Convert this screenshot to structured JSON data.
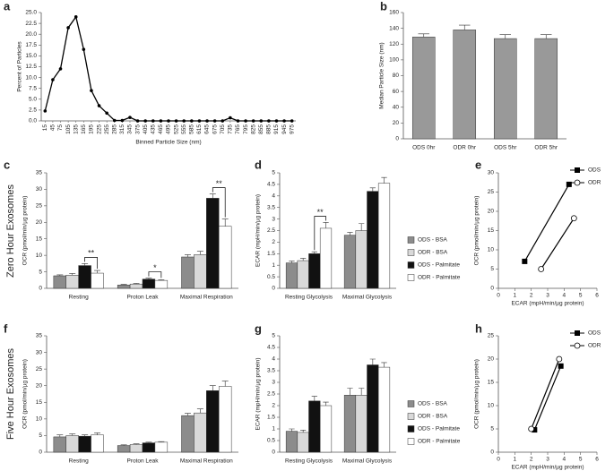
{
  "row_labels": [
    "Zero Hour Exosomes",
    "Five Hour Exosomes"
  ],
  "chart_data": [
    {
      "panel": "a",
      "type": "line",
      "categories": [
        "15",
        "45",
        "75",
        "105",
        "135",
        "165",
        "195",
        "225",
        "255",
        "285",
        "315",
        "345",
        "375",
        "405",
        "435",
        "465",
        "495",
        "525",
        "555",
        "585",
        "615",
        "645",
        "675",
        "705",
        "735",
        "765",
        "795",
        "825",
        "855",
        "885",
        "915",
        "945",
        "975"
      ],
      "series": [
        {
          "color": "#000000",
          "values": [
            2.3,
            9.5,
            12,
            21.5,
            24,
            16.5,
            7,
            3.5,
            1.8,
            0.1,
            0.1,
            0.8,
            0,
            0,
            0,
            0,
            0,
            0,
            0,
            0,
            0,
            0,
            0,
            0,
            0.7,
            0,
            0,
            0,
            0,
            0,
            0,
            0,
            0
          ]
        }
      ],
      "ylim": [
        0,
        25
      ],
      "yticks": [
        {
          "value": 0,
          "label": "0.0"
        },
        {
          "value": 2.5,
          "label": "2.5"
        },
        {
          "value": 5,
          "label": "5.0"
        },
        {
          "value": 7.5,
          "label": "7.5"
        },
        {
          "value": 10,
          "label": "10.0"
        },
        {
          "value": 12.5,
          "label": "12.5"
        },
        {
          "value": 15,
          "label": "15.0"
        },
        {
          "value": 17.5,
          "label": "17.5"
        },
        {
          "value": 20,
          "label": "20.0"
        },
        {
          "value": 22.5,
          "label": "22.5"
        },
        {
          "value": 25,
          "label": "25.0"
        }
      ],
      "xlabel": "Binned Particle Size (nm)",
      "ylabel": "Percent of Particles"
    },
    {
      "panel": "b",
      "type": "bar",
      "categories": [
        "ODS 0hr",
        "ODR 0hr",
        "ODS 5hr",
        "ODR 5hr"
      ],
      "series": [
        {
          "color": "#999999",
          "values": [
            129,
            138,
            127,
            127
          ],
          "errors": [
            4,
            6,
            5,
            5
          ]
        }
      ],
      "ylim": [
        0,
        160
      ],
      "yticks": [
        0,
        20,
        40,
        60,
        80,
        100,
        120,
        140,
        160
      ],
      "ylabel": "Median Particle Size (nm)"
    },
    {
      "panel": "c",
      "type": "bar",
      "categories": [
        "Resting",
        "Proton Leak",
        "Maximal Respiration"
      ],
      "series": [
        {
          "color": "#8c8c8c",
          "values": [
            3.8,
            1.0,
            9.5
          ],
          "errors": [
            0.3,
            0.2,
            0.7
          ]
        },
        {
          "color": "#d9d9d9",
          "values": [
            4.0,
            1.3,
            10.2
          ],
          "errors": [
            0.5,
            0.2,
            1.0
          ]
        },
        {
          "color": "#111111",
          "values": [
            6.9,
            2.8,
            27.3
          ],
          "errors": [
            0.6,
            0.3,
            1.3
          ]
        },
        {
          "color": "#ffffff",
          "values": [
            4.6,
            2.4,
            18.8
          ],
          "errors": [
            0.8,
            0.2,
            2.2
          ]
        }
      ],
      "ylim": [
        0,
        35
      ],
      "yticks": [
        0,
        5,
        10,
        15,
        20,
        25,
        30,
        35
      ],
      "ylabel": "OCR (pmol/min/µg protein)",
      "annotations": [
        {
          "text": "**",
          "category": "Resting"
        },
        {
          "text": "*",
          "category": "Proton Leak"
        },
        {
          "text": "**",
          "category": "Maximal Respiration"
        }
      ]
    },
    {
      "panel": "d",
      "type": "bar",
      "categories": [
        "Resting Glycolysis",
        "Maximal Glycolysis"
      ],
      "series": [
        {
          "name": "ODS - BSA",
          "color": "#8c8c8c",
          "values": [
            1.1,
            2.3
          ],
          "errors": [
            0.08,
            0.12
          ]
        },
        {
          "name": "ODR - BSA",
          "color": "#d9d9d9",
          "values": [
            1.2,
            2.5
          ],
          "errors": [
            0.1,
            0.3
          ]
        },
        {
          "name": "ODS - Palmitate",
          "color": "#111111",
          "values": [
            1.5,
            4.2
          ],
          "errors": [
            0.08,
            0.15
          ]
        },
        {
          "name": "ODR - Palmitate",
          "color": "#ffffff",
          "values": [
            2.6,
            4.55
          ],
          "errors": [
            0.25,
            0.25
          ]
        }
      ],
      "ylim": [
        0,
        5
      ],
      "yticks": [
        0,
        0.5,
        1,
        1.5,
        2,
        2.5,
        3,
        3.5,
        4,
        4.5,
        5
      ],
      "ylabel": "ECAR (mpH/min/µg protein)",
      "annotations": [
        {
          "text": "**",
          "category": "Resting Glycolysis"
        }
      ]
    },
    {
      "panel": "e",
      "type": "scatter",
      "series": [
        {
          "name": "ODS",
          "color": "#000000",
          "marker": "square",
          "x": [
            1.6,
            4.3
          ],
          "values": [
            7,
            27
          ]
        },
        {
          "name": "ODR",
          "color": "#000000",
          "marker": "circle",
          "x": [
            2.6,
            4.6
          ],
          "values": [
            5,
            18.2
          ]
        }
      ],
      "xlim": [
        0,
        6
      ],
      "xticks": [
        0,
        1,
        2,
        3,
        4,
        5,
        6
      ],
      "ylim": [
        0,
        30
      ],
      "yticks": [
        0,
        5,
        10,
        15,
        20,
        25,
        30
      ],
      "xlabel": "ECAR (mpH/min/µg protein)",
      "ylabel": "OCR (pmol/min/µg protein)"
    },
    {
      "panel": "f",
      "type": "bar",
      "categories": [
        "Resting",
        "Proton Leak",
        "Maximal Respiration"
      ],
      "series": [
        {
          "color": "#8c8c8c",
          "values": [
            4.6,
            2.0,
            11
          ],
          "errors": [
            0.6,
            0.2,
            0.7
          ]
        },
        {
          "color": "#d9d9d9",
          "values": [
            5.0,
            2.3,
            11.8
          ],
          "errors": [
            0.5,
            0.2,
            1.2
          ]
        },
        {
          "color": "#111111",
          "values": [
            4.8,
            2.8,
            18.5
          ],
          "errors": [
            0.4,
            0.2,
            1.5
          ]
        },
        {
          "color": "#ffffff",
          "values": [
            5.2,
            3.0,
            19.8
          ],
          "errors": [
            0.6,
            0.2,
            1.6
          ]
        }
      ],
      "ylim": [
        0,
        35
      ],
      "yticks": [
        0,
        5,
        10,
        15,
        20,
        25,
        30,
        35
      ],
      "ylabel": "OCR (pmol/min/µg protein)"
    },
    {
      "panel": "g",
      "type": "bar",
      "categories": [
        "Resting Glycolysis",
        "Maximal Glycolysis"
      ],
      "series": [
        {
          "name": "ODS - BSA",
          "color": "#8c8c8c",
          "values": [
            0.9,
            2.45
          ],
          "errors": [
            0.1,
            0.3
          ]
        },
        {
          "name": "ODR - BSA",
          "color": "#d9d9d9",
          "values": [
            0.85,
            2.45
          ],
          "errors": [
            0.1,
            0.3
          ]
        },
        {
          "name": "ODS - Palmitate",
          "color": "#111111",
          "values": [
            2.2,
            3.75
          ],
          "errors": [
            0.2,
            0.25
          ]
        },
        {
          "name": "ODR - Palmitate",
          "color": "#ffffff",
          "values": [
            2.0,
            3.65
          ],
          "errors": [
            0.15,
            0.2
          ]
        }
      ],
      "ylim": [
        0,
        5
      ],
      "yticks": [
        0,
        0.5,
        1,
        1.5,
        2,
        2.5,
        3,
        3.5,
        4,
        4.5,
        5
      ],
      "ylabel": "ECAR (mpH/min/µg protein)"
    },
    {
      "panel": "h",
      "type": "scatter",
      "series": [
        {
          "name": "ODS",
          "color": "#000000",
          "marker": "square",
          "x": [
            2.2,
            3.8
          ],
          "values": [
            4.8,
            18.5
          ]
        },
        {
          "name": "ODR",
          "color": "#000000",
          "marker": "circle",
          "x": [
            2.0,
            3.7
          ],
          "values": [
            5.0,
            20
          ]
        }
      ],
      "xlim": [
        0,
        6
      ],
      "xticks": [
        0,
        1,
        2,
        3,
        4,
        5,
        6
      ],
      "ylim": [
        0,
        25
      ],
      "yticks": [
        0,
        5,
        10,
        15,
        20,
        25
      ],
      "xlabel": "ECAR (mpH/min/µg protein)",
      "ylabel": "OCR (pmol/min/µg protein)"
    }
  ]
}
